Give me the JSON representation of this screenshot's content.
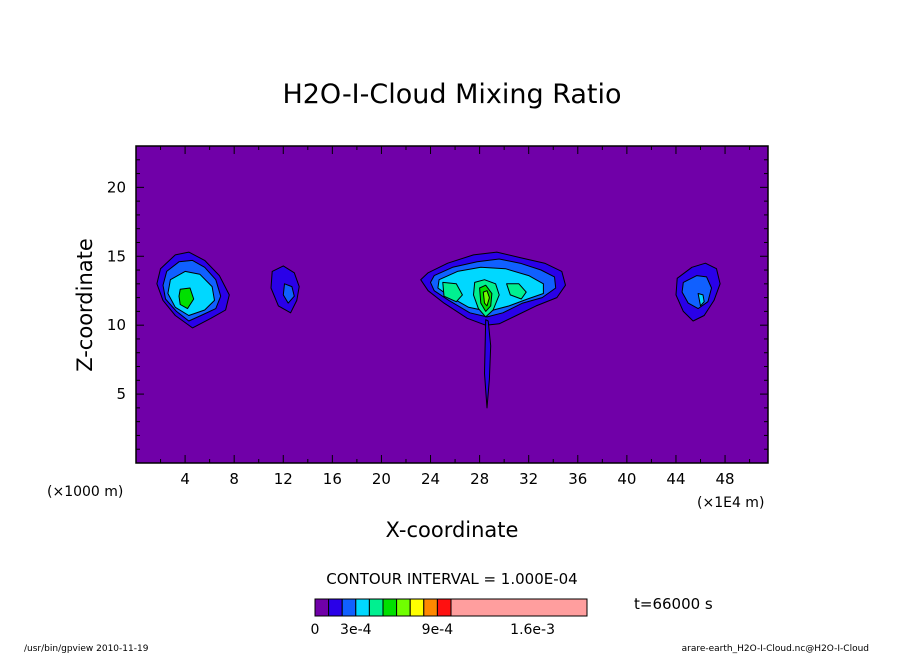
{
  "chart_data": {
    "type": "heatmap",
    "title": "H2O-I-Cloud Mixing Ratio",
    "xlabel": "X-coordinate",
    "ylabel": "Z-coordinate",
    "x_unit_label": "(×1E4 m)",
    "y_unit_label": "(×1000 m)",
    "xlim": [
      0,
      51.5
    ],
    "ylim": [
      0,
      23
    ],
    "x_ticks": [
      4,
      8,
      12,
      16,
      20,
      24,
      28,
      32,
      36,
      40,
      44,
      48
    ],
    "y_ticks": [
      5,
      10,
      15,
      20
    ],
    "contour_interval_text": "CONTOUR INTERVAL = 1.000E-04",
    "time_label": "t=66000 s",
    "colorbar": {
      "colors": [
        "#7000a8",
        "#2a00e8",
        "#1060ff",
        "#00d8ff",
        "#00f090",
        "#00e000",
        "#70ff00",
        "#ffff00",
        "#ff8800",
        "#ff1010",
        "#ff9e9e"
      ],
      "labels": [
        "0",
        "3e-4",
        "9e-4",
        "1.6e-3"
      ],
      "label_positions": [
        0,
        3,
        9,
        16
      ],
      "max": 20
    },
    "cloud_blobs": [
      {
        "x": [
          2.0,
          3.2,
          4.3,
          5.6,
          6.8,
          7.6,
          7.3,
          6.1,
          4.6,
          3.2,
          2.2,
          1.7,
          2.0
        ],
        "z": [
          14.1,
          15.1,
          15.3,
          14.7,
          13.6,
          12.2,
          11.1,
          10.5,
          9.8,
          10.7,
          11.8,
          13.0,
          14.1
        ],
        "level": 1
      },
      {
        "x": [
          2.5,
          3.5,
          4.6,
          5.6,
          6.5,
          6.9,
          6.5,
          5.3,
          4.3,
          3.3,
          2.4,
          2.2,
          2.5
        ],
        "z": [
          13.9,
          14.6,
          14.7,
          14.2,
          13.3,
          12.1,
          11.2,
          10.7,
          10.3,
          11.0,
          11.9,
          12.9,
          13.9
        ],
        "level": 2
      },
      {
        "x": [
          2.8,
          4.0,
          5.2,
          6.2,
          6.4,
          5.6,
          4.3,
          3.2,
          2.6,
          2.8
        ],
        "z": [
          13.3,
          13.9,
          13.7,
          12.8,
          11.8,
          11.1,
          10.7,
          11.3,
          12.3,
          13.3
        ],
        "level": 3
      },
      {
        "x": [
          3.6,
          4.4,
          4.7,
          4.2,
          3.6,
          3.5,
          3.6
        ],
        "z": [
          12.6,
          12.7,
          11.9,
          11.2,
          11.5,
          12.1,
          12.6
        ],
        "level": 5
      },
      {
        "x": [
          11.1,
          12.0,
          12.9,
          13.3,
          13.1,
          12.6,
          11.6,
          11.0,
          11.1
        ],
        "z": [
          13.9,
          14.3,
          13.8,
          12.8,
          11.8,
          10.9,
          11.4,
          12.7,
          13.9
        ],
        "level": 1
      },
      {
        "x": [
          12.1,
          12.7,
          12.9,
          12.4,
          12.0,
          12.1
        ],
        "z": [
          13.0,
          12.8,
          12.1,
          11.6,
          12.2,
          13.0
        ],
        "level": 2
      },
      {
        "x": [
          23.8,
          25.4,
          27.5,
          29.4,
          31.3,
          33.3,
          34.7,
          35.0,
          34.3,
          32.6,
          31.0,
          29.6,
          28.5,
          27.0,
          25.1,
          23.8,
          23.2,
          23.8
        ],
        "z": [
          13.8,
          14.5,
          15.1,
          15.3,
          14.9,
          14.5,
          13.9,
          12.9,
          12.0,
          11.4,
          10.7,
          10.1,
          10.0,
          10.5,
          11.6,
          12.5,
          13.3,
          13.8
        ],
        "level": 1
      },
      {
        "x": [
          24.3,
          25.8,
          27.8,
          29.6,
          31.3,
          33.0,
          34.1,
          34.2,
          33.1,
          31.5,
          29.9,
          28.6,
          27.2,
          25.5,
          24.3,
          24.0,
          24.3
        ],
        "z": [
          13.6,
          14.2,
          14.6,
          14.8,
          14.5,
          14.0,
          13.5,
          12.7,
          12.0,
          11.6,
          10.9,
          10.6,
          10.9,
          11.8,
          12.5,
          13.1,
          13.6
        ],
        "level": 2
      },
      {
        "x": [
          24.7,
          26.2,
          28.1,
          30.1,
          32.0,
          33.2,
          33.2,
          31.9,
          30.4,
          28.7,
          27.1,
          25.7,
          24.6,
          24.7
        ],
        "z": [
          13.3,
          13.9,
          14.2,
          14.1,
          13.6,
          13.0,
          12.3,
          11.9,
          11.4,
          11.0,
          11.3,
          12.0,
          12.7,
          13.3
        ],
        "level": 3
      },
      {
        "x": [
          25.0,
          26.1,
          26.6,
          26.1,
          25.1,
          25.0
        ],
        "z": [
          13.1,
          13.0,
          12.2,
          11.7,
          12.1,
          13.1
        ],
        "level": 4
      },
      {
        "x": [
          27.6,
          28.4,
          29.3,
          29.6,
          29.1,
          28.5,
          27.9,
          27.5,
          27.6
        ],
        "z": [
          13.1,
          13.3,
          13.0,
          12.2,
          11.1,
          10.6,
          11.2,
          12.2,
          13.1
        ],
        "level": 4
      },
      {
        "x": [
          28.0,
          28.5,
          29.0,
          28.9,
          28.5,
          28.1,
          28.0
        ],
        "z": [
          12.7,
          12.9,
          12.3,
          11.4,
          11.0,
          11.6,
          12.7
        ],
        "level": 5
      },
      {
        "x": [
          28.3,
          28.6,
          28.8,
          28.6,
          28.4,
          28.3
        ],
        "z": [
          12.4,
          12.5,
          12.0,
          11.4,
          11.6,
          12.4
        ],
        "level": 6
      },
      {
        "x": [
          30.2,
          31.2,
          31.8,
          31.4,
          30.5,
          30.2
        ],
        "z": [
          13.0,
          13.0,
          12.4,
          11.9,
          12.2,
          13.0
        ],
        "level": 4
      },
      {
        "x": [
          44.1,
          45.3,
          46.4,
          47.3,
          47.6,
          47.1,
          46.3,
          45.4,
          44.6,
          44.0,
          44.1
        ],
        "z": [
          13.4,
          14.2,
          14.5,
          14.1,
          13.0,
          11.8,
          10.7,
          10.3,
          11.0,
          12.2,
          13.4
        ],
        "level": 1
      },
      {
        "x": [
          44.6,
          45.7,
          46.5,
          46.9,
          46.6,
          45.8,
          45.0,
          44.5,
          44.6
        ],
        "z": [
          13.1,
          13.6,
          13.5,
          12.7,
          11.7,
          11.2,
          11.6,
          12.4,
          13.1
        ],
        "level": 2
      },
      {
        "x": [
          45.8,
          46.2,
          46.3,
          46.0,
          45.8
        ],
        "z": [
          12.3,
          12.2,
          11.7,
          11.4,
          12.3
        ],
        "level": 3
      },
      {
        "x": [
          28.5,
          28.7,
          28.9,
          28.8,
          28.6,
          28.4,
          28.5
        ],
        "z": [
          10.4,
          10.3,
          8.5,
          6.1,
          4.0,
          6.5,
          10.4
        ],
        "level": 1
      }
    ]
  },
  "footer": {
    "left": "/usr/bin/gpview   2010-11-19",
    "right": "arare-earth_H2O-I-Cloud.nc@H2O-I-Cloud"
  }
}
